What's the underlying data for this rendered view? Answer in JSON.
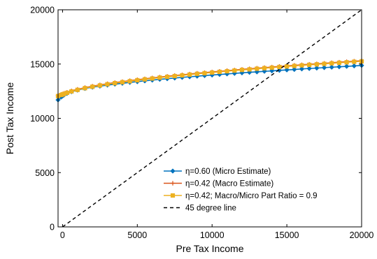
{
  "chart_data": {
    "type": "line",
    "title": "",
    "xlabel": "Pre Tax Income",
    "ylabel": "Post Tax Income",
    "xlim": [
      -300,
      20000
    ],
    "ylim": [
      0,
      20000
    ],
    "xticks": [
      0,
      5000,
      10000,
      15000,
      20000
    ],
    "yticks": [
      0,
      5000,
      10000,
      15000,
      20000
    ],
    "x_tick_labels": [
      "0",
      "5000",
      "10000",
      "15000",
      "20000"
    ],
    "y_tick_labels": [
      "0",
      "5000",
      "10000",
      "15000",
      "20000"
    ],
    "grid": false,
    "legend_position": "lower-center",
    "x": [
      -300,
      -100,
      0,
      100,
      300,
      600,
      1000,
      1500,
      2000,
      2500,
      3000,
      3500,
      4000,
      4500,
      5000,
      5500,
      6000,
      6500,
      7000,
      7500,
      8000,
      8500,
      9000,
      9500,
      10000,
      10500,
      11000,
      11500,
      12000,
      12500,
      13000,
      13500,
      14000,
      14500,
      15000,
      15500,
      16000,
      16500,
      17000,
      17500,
      18000,
      18500,
      19000,
      19500,
      20000
    ],
    "series": [
      {
        "name": "η=0.60 (Micro Estimate)",
        "color": "#0072bd",
        "marker": "diamond",
        "values": [
          11700,
          11950,
          12050,
          12150,
          12300,
          12450,
          12600,
          12750,
          12870,
          12970,
          13060,
          13150,
          13230,
          13310,
          13380,
          13450,
          13520,
          13590,
          13650,
          13710,
          13770,
          13830,
          13880,
          13940,
          13990,
          14040,
          14090,
          14140,
          14190,
          14240,
          14280,
          14330,
          14370,
          14420,
          14460,
          14500,
          14550,
          14590,
          14630,
          14670,
          14710,
          14750,
          14790,
          14830,
          14870
        ]
      },
      {
        "name": "η=0.42 (Macro Estimate)",
        "color": "#d95319",
        "marker": "plus",
        "values": [
          12100,
          12200,
          12250,
          12300,
          12400,
          12530,
          12670,
          12830,
          12960,
          13080,
          13190,
          13290,
          13380,
          13470,
          13560,
          13640,
          13720,
          13800,
          13870,
          13940,
          14010,
          14080,
          14150,
          14210,
          14270,
          14330,
          14390,
          14450,
          14510,
          14560,
          14620,
          14670,
          14720,
          14780,
          14830,
          14880,
          14930,
          14980,
          15020,
          15070,
          15120,
          15170,
          15210,
          15260,
          15300
        ]
      },
      {
        "name": "η=0.42; Macro/Micro Part Ratio = 0.9",
        "color": "#edb120",
        "marker": "square",
        "values": [
          12050,
          12150,
          12200,
          12250,
          12350,
          12480,
          12620,
          12780,
          12910,
          13030,
          13140,
          13240,
          13330,
          13420,
          13510,
          13590,
          13670,
          13750,
          13820,
          13890,
          13960,
          14030,
          14100,
          14160,
          14220,
          14280,
          14340,
          14400,
          14460,
          14510,
          14570,
          14620,
          14670,
          14730,
          14780,
          14830,
          14880,
          14930,
          14970,
          15020,
          15070,
          15120,
          15160,
          15210,
          15250
        ]
      },
      {
        "name": "45 degree line",
        "color": "#000000",
        "style": "dashed",
        "values": [
          -300,
          -100,
          0,
          100,
          300,
          600,
          1000,
          1500,
          2000,
          2500,
          3000,
          3500,
          4000,
          4500,
          5000,
          5500,
          6000,
          6500,
          7000,
          7500,
          8000,
          8500,
          9000,
          9500,
          10000,
          10500,
          11000,
          11500,
          12000,
          12500,
          13000,
          13500,
          14000,
          14500,
          15000,
          15500,
          16000,
          16500,
          17000,
          17500,
          18000,
          18500,
          19000,
          19500,
          20000
        ]
      }
    ]
  }
}
